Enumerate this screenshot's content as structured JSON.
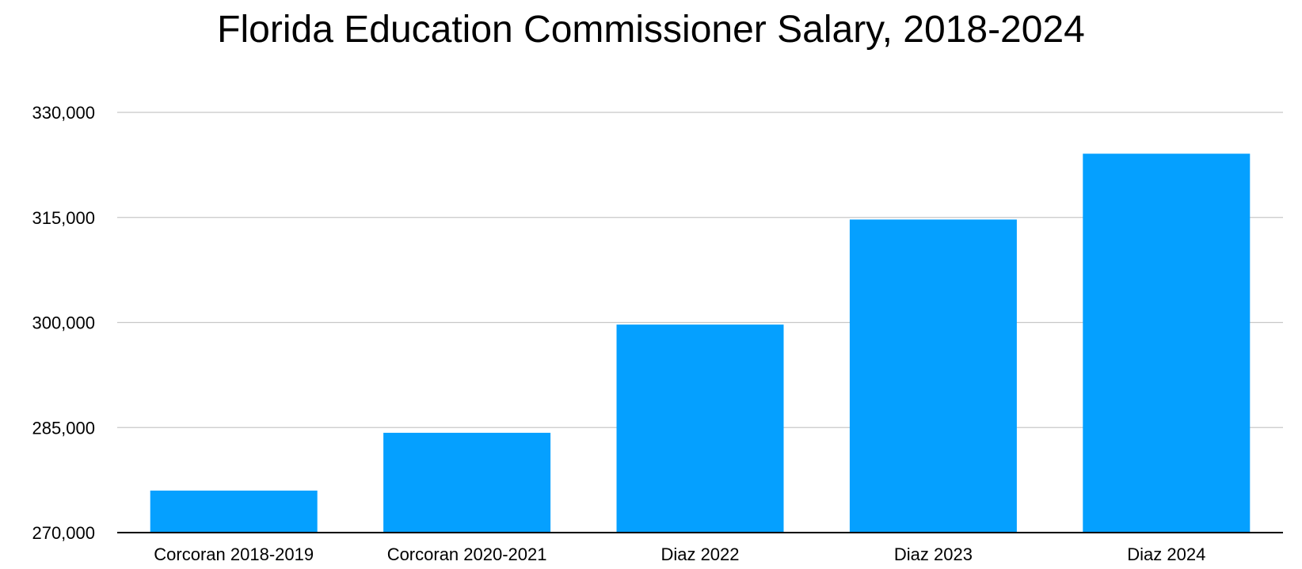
{
  "chart_data": {
    "type": "bar",
    "title": "Florida Education Commissioner Salary, 2018-2024",
    "xlabel": "",
    "ylabel": "",
    "categories": [
      "Corcoran 2018-2019",
      "Corcoran 2020-2021",
      "Diaz 2022",
      "Diaz 2023",
      "Diaz 2024"
    ],
    "values": [
      276000,
      284250,
      299700,
      314700,
      324100
    ],
    "ylim": [
      270000,
      330000
    ],
    "yticks": [
      270000,
      285000,
      300000,
      315000,
      330000
    ],
    "ytick_labels": [
      "270,000",
      "285,000",
      "300,000",
      "315,000",
      "330,000"
    ],
    "grid": true,
    "legend": "none",
    "bar_color": "#05A0FF",
    "grid_color": "#C8C8C8",
    "axis_color": "#000000"
  }
}
